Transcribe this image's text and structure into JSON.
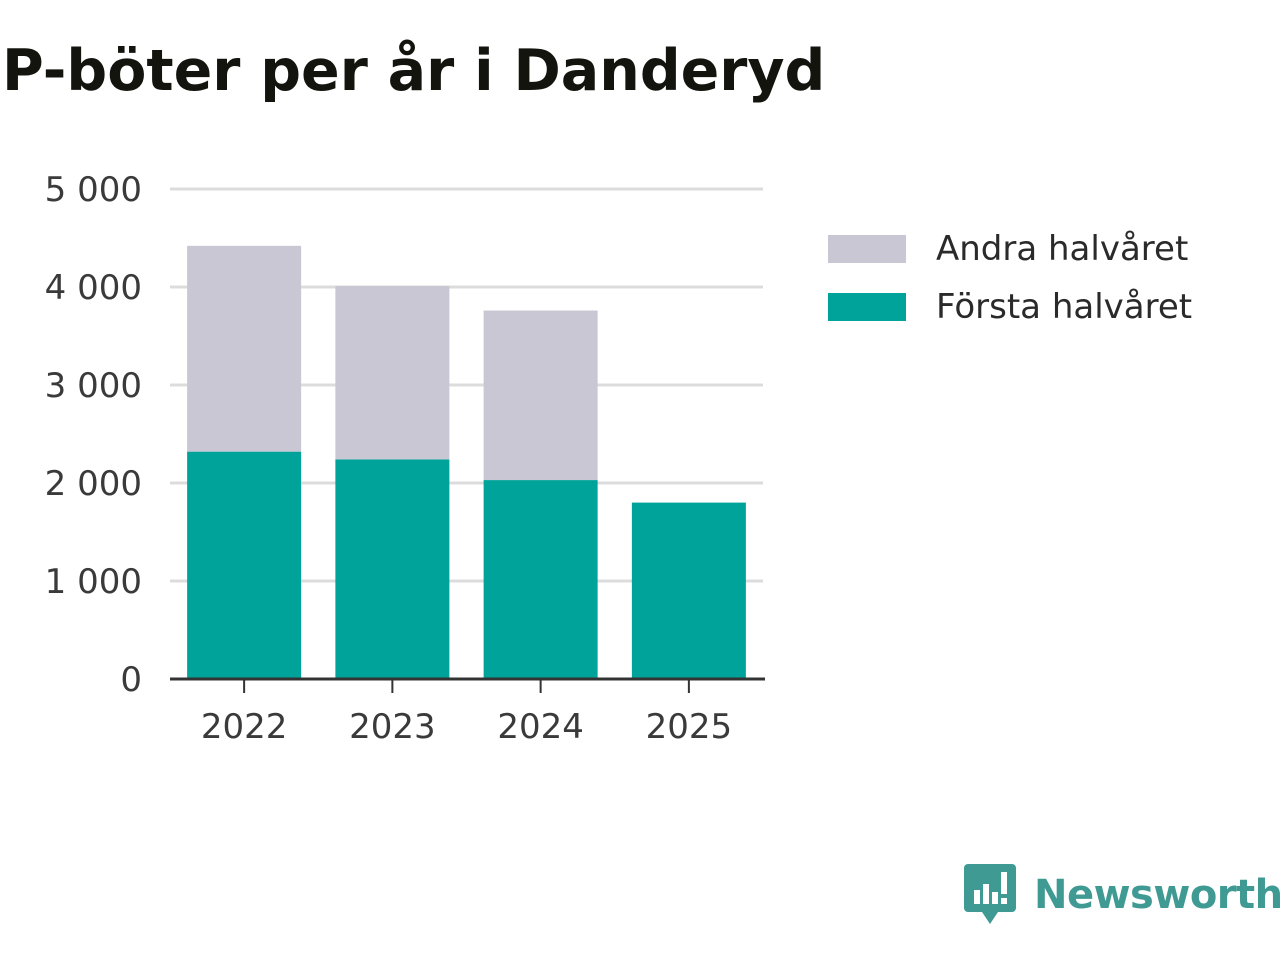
{
  "chart_data": {
    "type": "bar",
    "stacked": true,
    "title": "P-böter per år i Danderyd",
    "xlabel": "",
    "ylabel": "",
    "categories": [
      "2022",
      "2023",
      "2024",
      "2025"
    ],
    "series": [
      {
        "name": "Första halvåret",
        "color": "#00a39a",
        "values": [
          2320,
          2240,
          2030,
          1800
        ]
      },
      {
        "name": "Andra halvåret",
        "color": "#c8c7d3",
        "values": [
          2100,
          1770,
          1730,
          0
        ]
      }
    ],
    "ylim": [
      0,
      5000
    ],
    "yticks": [
      0,
      1000,
      2000,
      3000,
      4000,
      5000
    ],
    "ytick_labels": [
      "0",
      "1 000",
      "2 000",
      "3 000",
      "4 000",
      "5 000"
    ],
    "grid": true,
    "legend_position": "right",
    "legend_order": [
      "Andra halvåret",
      "Första halvåret"
    ]
  },
  "brand": {
    "name": "Newsworthy",
    "color": "#3f9a93",
    "icon": "newsworthy-logo-icon"
  }
}
